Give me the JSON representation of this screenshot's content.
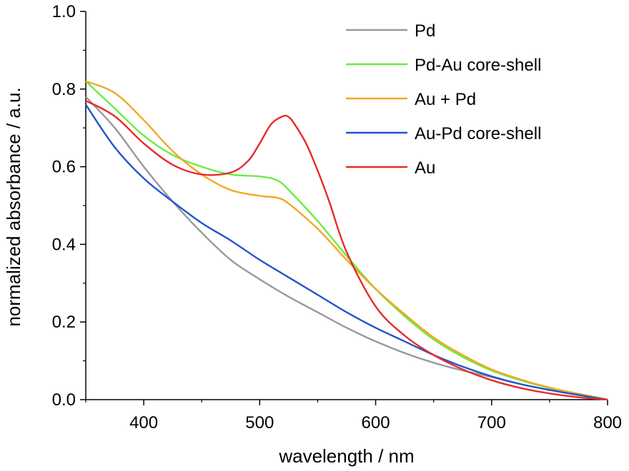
{
  "chart_data": {
    "type": "line",
    "xlabel": "wavelength / nm",
    "ylabel": "normalized absorbance / a.u.",
    "xlim": [
      350,
      800
    ],
    "ylim": [
      0.0,
      1.0
    ],
    "x_ticks": [
      400,
      500,
      600,
      700,
      800
    ],
    "x_tick_labels": [
      "400",
      "500",
      "600",
      "700",
      "800"
    ],
    "y_ticks": [
      0.0,
      0.2,
      0.4,
      0.6,
      0.8,
      1.0
    ],
    "y_tick_labels": [
      "0.0",
      "0.2",
      "0.4",
      "0.6",
      "0.8",
      "1.0"
    ],
    "grid": false,
    "legend_position": "top-right",
    "series": [
      {
        "name": "Pd",
        "color": "#999999",
        "x": [
          350,
          375,
          400,
          425,
          450,
          475,
          500,
          525,
          550,
          575,
          600,
          625,
          650,
          675,
          700,
          725,
          750,
          775,
          800
        ],
        "y": [
          0.78,
          0.7,
          0.6,
          0.51,
          0.43,
          0.36,
          0.31,
          0.265,
          0.225,
          0.185,
          0.15,
          0.12,
          0.095,
          0.075,
          0.058,
          0.04,
          0.025,
          0.012,
          0.0
        ]
      },
      {
        "name": "Pd-Au core-shell",
        "color": "#66EE44",
        "x": [
          350,
          375,
          400,
          425,
          450,
          475,
          500,
          515,
          525,
          550,
          575,
          600,
          625,
          650,
          675,
          700,
          725,
          750,
          775,
          800
        ],
        "y": [
          0.82,
          0.75,
          0.68,
          0.63,
          0.6,
          0.58,
          0.575,
          0.565,
          0.54,
          0.46,
          0.37,
          0.285,
          0.215,
          0.155,
          0.11,
          0.075,
          0.05,
          0.03,
          0.015,
          0.0
        ]
      },
      {
        "name": "Au + Pd",
        "color": "#F5A623",
        "x": [
          350,
          375,
          400,
          425,
          450,
          475,
          500,
          515,
          525,
          550,
          575,
          600,
          625,
          650,
          675,
          700,
          725,
          750,
          775,
          800
        ],
        "y": [
          0.82,
          0.79,
          0.72,
          0.64,
          0.58,
          0.54,
          0.525,
          0.52,
          0.505,
          0.44,
          0.36,
          0.285,
          0.22,
          0.16,
          0.115,
          0.078,
          0.052,
          0.031,
          0.015,
          0.0
        ]
      },
      {
        "name": "Au-Pd core-shell",
        "color": "#2255CC",
        "x": [
          350,
          375,
          400,
          425,
          450,
          475,
          500,
          525,
          550,
          575,
          600,
          625,
          650,
          675,
          700,
          725,
          750,
          775,
          800
        ],
        "y": [
          0.76,
          0.65,
          0.57,
          0.51,
          0.455,
          0.41,
          0.36,
          0.315,
          0.27,
          0.225,
          0.185,
          0.15,
          0.115,
          0.085,
          0.06,
          0.04,
          0.025,
          0.012,
          0.0
        ]
      },
      {
        "name": "Au",
        "color": "#E82A2A",
        "x": [
          350,
          375,
          400,
          425,
          450,
          475,
          490,
          500,
          510,
          520,
          525,
          530,
          540,
          550,
          560,
          575,
          600,
          625,
          650,
          675,
          700,
          725,
          750,
          775,
          800
        ],
        "y": [
          0.77,
          0.73,
          0.66,
          0.605,
          0.58,
          0.585,
          0.615,
          0.66,
          0.71,
          0.73,
          0.728,
          0.71,
          0.66,
          0.59,
          0.51,
          0.38,
          0.24,
          0.165,
          0.115,
          0.078,
          0.05,
          0.03,
          0.016,
          0.006,
          0.0
        ]
      }
    ]
  }
}
